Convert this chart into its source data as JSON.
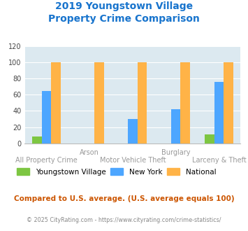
{
  "title_line1": "2019 Youngstown Village",
  "title_line2": "Property Crime Comparison",
  "title_color": "#1874cd",
  "categories": [
    "All Property Crime",
    "Arson",
    "Motor Vehicle Theft",
    "Burglary",
    "Larceny & Theft"
  ],
  "youngstown": [
    8,
    0,
    0,
    0,
    11
  ],
  "new_york": [
    65,
    0,
    30,
    42,
    76
  ],
  "national": [
    100,
    100,
    100,
    100,
    100
  ],
  "color_youngstown": "#7dc642",
  "color_new_york": "#4da6ff",
  "color_national": "#ffb347",
  "ylim": [
    0,
    120
  ],
  "yticks": [
    0,
    20,
    40,
    60,
    80,
    100,
    120
  ],
  "bar_width": 0.22,
  "plot_bg": "#dce9f0",
  "legend_labels": [
    "Youngstown Village",
    "New York",
    "National"
  ],
  "footnote1": "Compared to U.S. average. (U.S. average equals 100)",
  "footnote2": "© 2025 CityRating.com - https://www.cityrating.com/crime-statistics/",
  "footnote1_color": "#cc5500",
  "footnote2_color": "#888888",
  "xlabel_color": "#999999",
  "grid_color": "#ffffff",
  "top_labels": {
    "1": "Arson",
    "3": "Burglary"
  },
  "bottom_labels": {
    "0": "All Property Crime",
    "2": "Motor Vehicle Theft",
    "4": "Larceny & Theft"
  }
}
